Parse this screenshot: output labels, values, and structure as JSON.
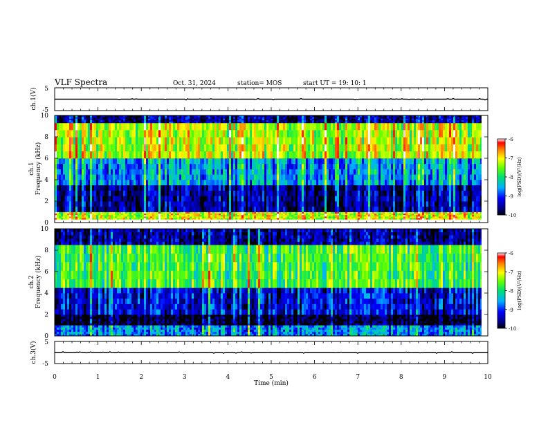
{
  "header": {
    "title": "VLF Spectra",
    "date": "Oct. 31, 2024",
    "station": "station= MOS",
    "start": "start  UT =   19: 10: 1"
  },
  "chart_data": [
    {
      "type": "line",
      "panel": "ch1-waveform",
      "ylabel": "ch.1(V)",
      "ylim": [
        -5,
        5
      ],
      "y_ticks": [
        "5",
        "-5"
      ],
      "trace_level": 0
    },
    {
      "type": "heatmap",
      "panel": "ch1-spectrogram",
      "ylabel_1": "ch.1",
      "ylabel_2": "Frequency (kHz)",
      "ylim": [
        0,
        10
      ],
      "y_ticks": [
        "0",
        "2",
        "4",
        "6",
        "8",
        "10"
      ],
      "bands": [
        {
          "from": 0.3,
          "to": 1.0,
          "level": -7.2
        },
        {
          "from": 1.0,
          "to": 3.5,
          "level": -9.6
        },
        {
          "from": 3.5,
          "to": 6.0,
          "level": -8.6
        },
        {
          "from": 6.0,
          "to": 9.3,
          "level": -7.3
        },
        {
          "from": 9.3,
          "to": 10.0,
          "level": -9.6
        }
      ],
      "colorbar": {
        "label": "log(PSD)(V²/Hz)",
        "ticks": [
          "-6",
          "-7",
          "-8",
          "-9",
          "-10"
        ],
        "range": [
          -10,
          -6
        ]
      }
    },
    {
      "type": "heatmap",
      "panel": "ch2-spectrogram",
      "ylabel_1": "ch.2",
      "ylabel_2": "Frequency (kHz)",
      "ylim": [
        0,
        10
      ],
      "y_ticks": [
        "0",
        "2",
        "4",
        "6",
        "8",
        "10"
      ],
      "bands": [
        {
          "from": 0.0,
          "to": 1.0,
          "level": -8.7
        },
        {
          "from": 1.0,
          "to": 2.0,
          "level": -10.0
        },
        {
          "from": 2.0,
          "to": 4.5,
          "level": -9.3
        },
        {
          "from": 4.5,
          "to": 8.5,
          "level": -7.8
        },
        {
          "from": 8.5,
          "to": 10.0,
          "level": -9.6
        }
      ],
      "colorbar": {
        "label": "log(PSD)(V²/Hz)",
        "ticks": [
          "-6",
          "-7",
          "-8",
          "-9",
          "-10"
        ],
        "range": [
          -10,
          -6
        ]
      }
    },
    {
      "type": "line",
      "panel": "ch3-waveform",
      "ylabel": "ch.3(V)",
      "ylim": [
        -5,
        5
      ],
      "y_ticks": [
        "5",
        "-5"
      ],
      "trace_level": 0
    }
  ],
  "xaxis": {
    "label": "Time (min)",
    "range": [
      0,
      10
    ],
    "data_end": 9.85,
    "ticks": [
      "0",
      "1",
      "2",
      "3",
      "4",
      "5",
      "6",
      "7",
      "8",
      "9",
      "10"
    ]
  }
}
